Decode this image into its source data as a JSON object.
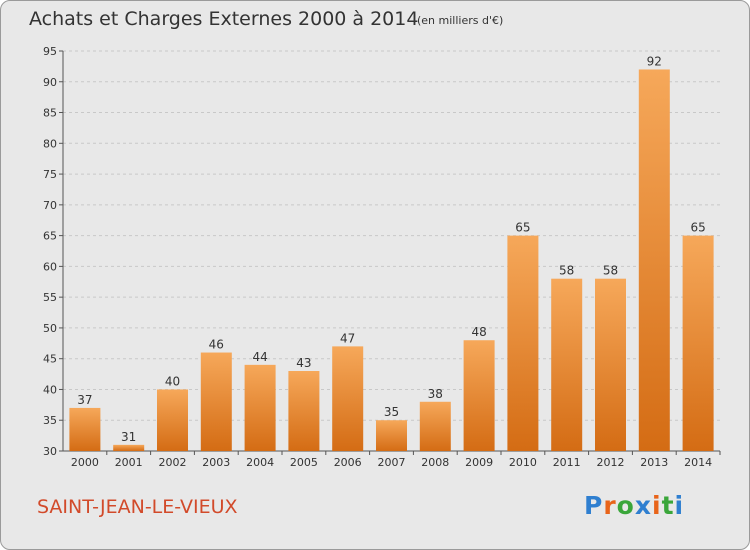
{
  "header": {
    "title": "Achats et Charges Externes 2000 à 2014",
    "subtitle": "(en milliers d'€)"
  },
  "footer": {
    "city": "SAINT-JEAN-LE-VIEUX",
    "logo_letters": [
      "P",
      "r",
      "o",
      "x",
      "i",
      "t",
      "i"
    ],
    "logo_colors": [
      "#2f7fd0",
      "#e8641a",
      "#3aa63a",
      "#2f7fd0",
      "#e8641a",
      "#3aa63a",
      "#2f7fd0"
    ]
  },
  "colors": {
    "bar_top": "#f6a85a",
    "bar_bottom": "#d46c14",
    "grid": "#c8c8c8",
    "plot_bg": "#e8e8e8"
  },
  "chart_data": {
    "type": "bar",
    "categories": [
      "2000",
      "2001",
      "2002",
      "2003",
      "2004",
      "2005",
      "2006",
      "2007",
      "2008",
      "2009",
      "2010",
      "2011",
      "2012",
      "2013",
      "2014"
    ],
    "values": [
      37,
      31,
      40,
      46,
      44,
      43,
      47,
      35,
      38,
      48,
      65,
      58,
      58,
      92,
      65
    ],
    "ylim": [
      30,
      95
    ],
    "yticks": [
      30,
      35,
      40,
      45,
      50,
      55,
      60,
      65,
      70,
      75,
      80,
      85,
      90,
      95
    ],
    "grid": true
  }
}
